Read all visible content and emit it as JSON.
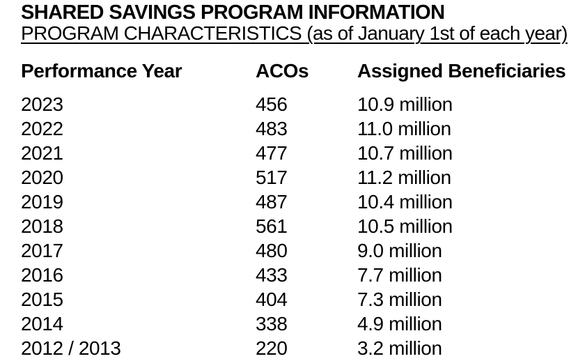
{
  "header": {
    "title": "SHARED SAVINGS PROGRAM INFORMATION",
    "subtitle": "PROGRAM CHARACTERISTICS (as of January 1st of each year)"
  },
  "table": {
    "columns": [
      "Performance Year",
      "ACOs",
      "Assigned Beneficiaries"
    ],
    "rows": [
      {
        "year": "2023",
        "acos": "456",
        "beneficiaries": "10.9 million"
      },
      {
        "year": "2022",
        "acos": "483",
        "beneficiaries": "11.0 million"
      },
      {
        "year": "2021",
        "acos": "477",
        "beneficiaries": "10.7 million"
      },
      {
        "year": "2020",
        "acos": "517",
        "beneficiaries": "11.2 million"
      },
      {
        "year": "2019",
        "acos": "487",
        "beneficiaries": "10.4 million"
      },
      {
        "year": "2018",
        "acos": "561",
        "beneficiaries": "10.5 million"
      },
      {
        "year": "2017",
        "acos": "480",
        "beneficiaries": "9.0 million"
      },
      {
        "year": "2016",
        "acos": "433",
        "beneficiaries": "7.7 million"
      },
      {
        "year": "2015",
        "acos": "404",
        "beneficiaries": "7.3 million"
      },
      {
        "year": "2014",
        "acos": "338",
        "beneficiaries": "4.9 million"
      },
      {
        "year": "2012 / 2013",
        "acos": "220",
        "beneficiaries": "3.2 million"
      }
    ]
  },
  "colors": {
    "text": "#000000",
    "background": "#ffffff"
  }
}
